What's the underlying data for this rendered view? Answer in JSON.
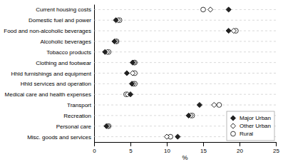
{
  "chart_data": {
    "type": "dot",
    "orientation": "horizontal",
    "categories": [
      "Current housing costs",
      "Domestic fuel and power",
      "Food and non-alcoholic beverages",
      "Alcoholic beverages",
      "Tobacco products",
      "Clothing and footwear",
      "Hhld furnishings and equipment",
      "Hhld services and operation",
      "Medical care and health expenses",
      "Transport",
      "Recreation",
      "Personal care",
      "Misc. goods and services"
    ],
    "series": [
      {
        "name": "Major Urban",
        "marker": "diamond",
        "values": [
          18.5,
          3.0,
          18.5,
          2.8,
          1.5,
          5.3,
          4.5,
          5.2,
          5.0,
          14.5,
          13.0,
          1.7,
          11.5
        ]
      },
      {
        "name": "Other Urban",
        "marker": "diamond-open",
        "values": [
          16.0,
          3.3,
          19.2,
          3.0,
          1.8,
          5.5,
          5.3,
          5.4,
          4.6,
          16.5,
          13.3,
          1.9,
          10.0
        ]
      },
      {
        "name": "Rural",
        "marker": "circle-open",
        "values": [
          15.0,
          3.5,
          19.5,
          3.1,
          2.0,
          5.6,
          5.6,
          5.6,
          4.4,
          17.2,
          13.5,
          2.0,
          10.5
        ]
      }
    ],
    "xlabel": "%",
    "xlim": [
      0,
      25
    ],
    "xticks": [
      0,
      5,
      10,
      15,
      20,
      25
    ],
    "grid": true,
    "legend": "lower right"
  }
}
